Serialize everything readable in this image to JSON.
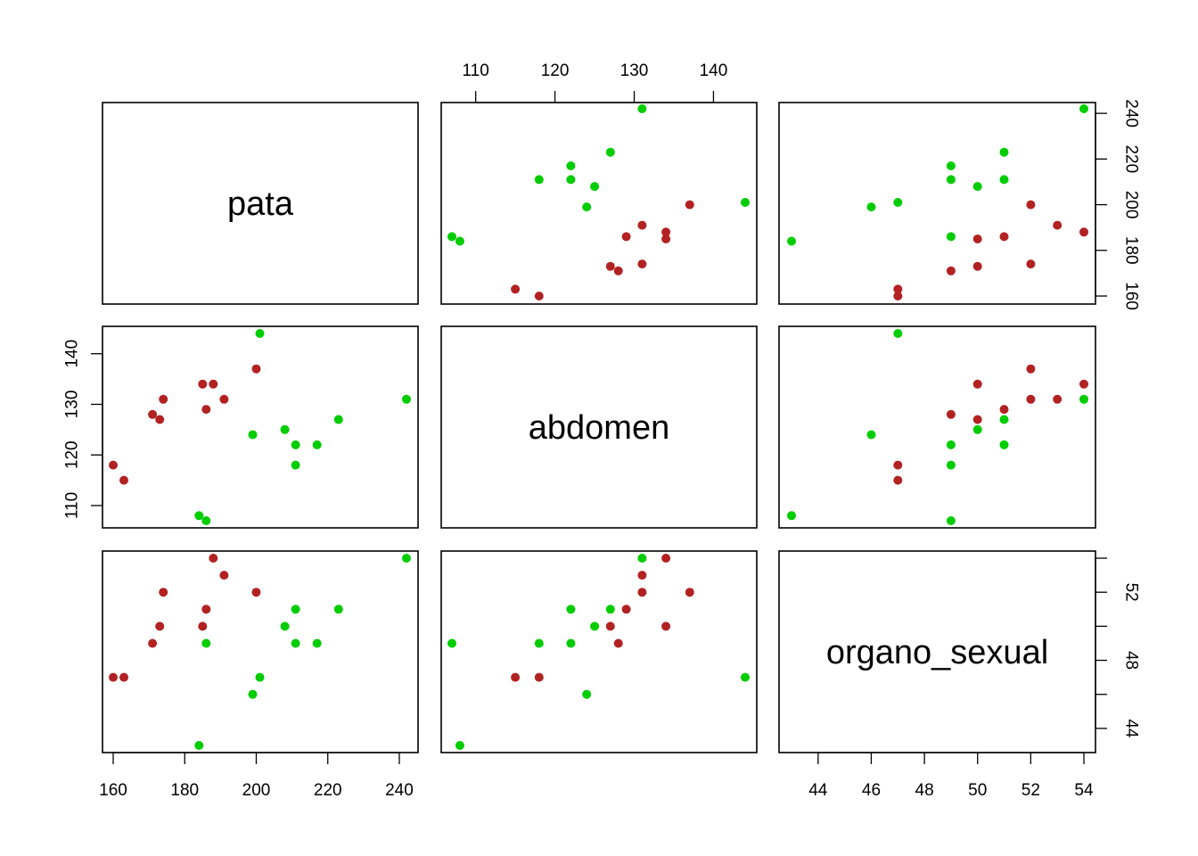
{
  "chart_data": {
    "type": "scatter",
    "layout": "pairs-matrix",
    "variables": [
      "pata",
      "abdomen",
      "organo_sexual"
    ],
    "ranges": {
      "pata": [
        160,
        242
      ],
      "abdomen": [
        107,
        144
      ],
      "organo_sexual": [
        43,
        54
      ]
    },
    "ticks": {
      "pata": [
        160,
        180,
        200,
        220,
        240
      ],
      "abdomen": [
        110,
        120,
        130,
        140
      ],
      "organo_sexual": [
        44,
        46,
        48,
        50,
        52,
        54
      ]
    },
    "tick_labels": {
      "pata": [
        "160",
        "180",
        "200",
        "220",
        "240"
      ],
      "abdomen": [
        "110",
        "120",
        "130",
        "140"
      ],
      "organo_sexual_bottom": [
        "44",
        "46",
        "48",
        "50",
        "52",
        "54"
      ],
      "organo_sexual_right": [
        "44",
        "48",
        "52"
      ]
    },
    "groups": [
      {
        "color": "#B22222",
        "points": [
          {
            "pata": 160,
            "abdomen": 118,
            "organo_sexual": 47
          },
          {
            "pata": 163,
            "abdomen": 115,
            "organo_sexual": 47
          },
          {
            "pata": 171,
            "abdomen": 128,
            "organo_sexual": 49
          },
          {
            "pata": 173,
            "abdomen": 127,
            "organo_sexual": 50
          },
          {
            "pata": 174,
            "abdomen": 131,
            "organo_sexual": 52
          },
          {
            "pata": 185,
            "abdomen": 134,
            "organo_sexual": 50
          },
          {
            "pata": 186,
            "abdomen": 129,
            "organo_sexual": 51
          },
          {
            "pata": 188,
            "abdomen": 134,
            "organo_sexual": 54
          },
          {
            "pata": 191,
            "abdomen": 131,
            "organo_sexual": 53
          },
          {
            "pata": 200,
            "abdomen": 137,
            "organo_sexual": 52
          }
        ]
      },
      {
        "color": "#00CD00",
        "points": [
          {
            "pata": 184,
            "abdomen": 108,
            "organo_sexual": 43
          },
          {
            "pata": 186,
            "abdomen": 107,
            "organo_sexual": 49
          },
          {
            "pata": 199,
            "abdomen": 124,
            "organo_sexual": 46
          },
          {
            "pata": 201,
            "abdomen": 144,
            "organo_sexual": 47
          },
          {
            "pata": 208,
            "abdomen": 125,
            "organo_sexual": 50
          },
          {
            "pata": 211,
            "abdomen": 122,
            "organo_sexual": 51
          },
          {
            "pata": 211,
            "abdomen": 118,
            "organo_sexual": 49
          },
          {
            "pata": 217,
            "abdomen": 122,
            "organo_sexual": 49
          },
          {
            "pata": 223,
            "abdomen": 127,
            "organo_sexual": 51
          },
          {
            "pata": 242,
            "abdomen": 131,
            "organo_sexual": 54
          }
        ]
      }
    ]
  }
}
